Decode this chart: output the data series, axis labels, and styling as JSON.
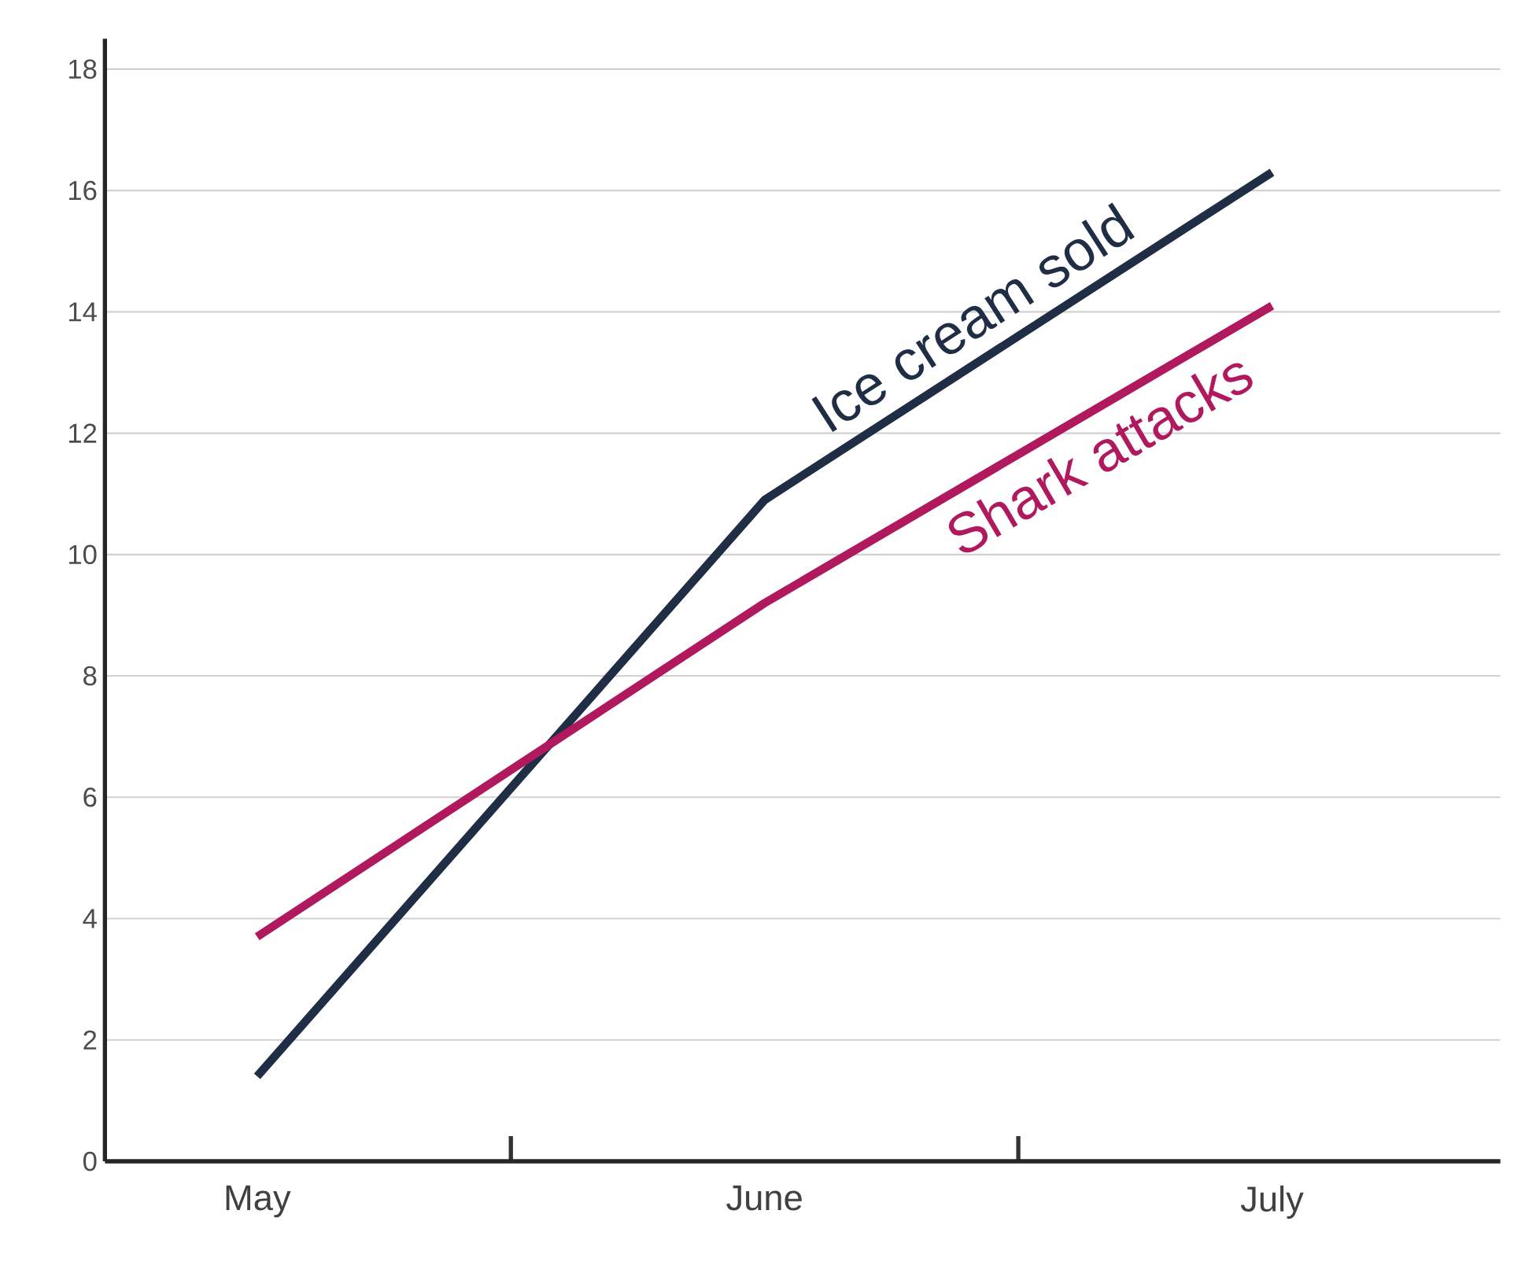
{
  "chart_data": {
    "type": "line",
    "categories": [
      "May",
      "June",
      "July"
    ],
    "series": [
      {
        "name": "Ice cream sold",
        "color": "#1f2d45",
        "values": [
          1.4,
          10.9,
          16.3
        ]
      },
      {
        "name": "Shark attacks",
        "color": "#b0195e",
        "values": [
          3.7,
          9.2,
          14.1
        ]
      }
    ],
    "ylim": [
      0,
      18.5
    ],
    "yticks": [
      0,
      2,
      4,
      6,
      8,
      10,
      12,
      14,
      16,
      18
    ],
    "grid": "y",
    "legend": false,
    "marker": "none",
    "line_style": "solid"
  }
}
